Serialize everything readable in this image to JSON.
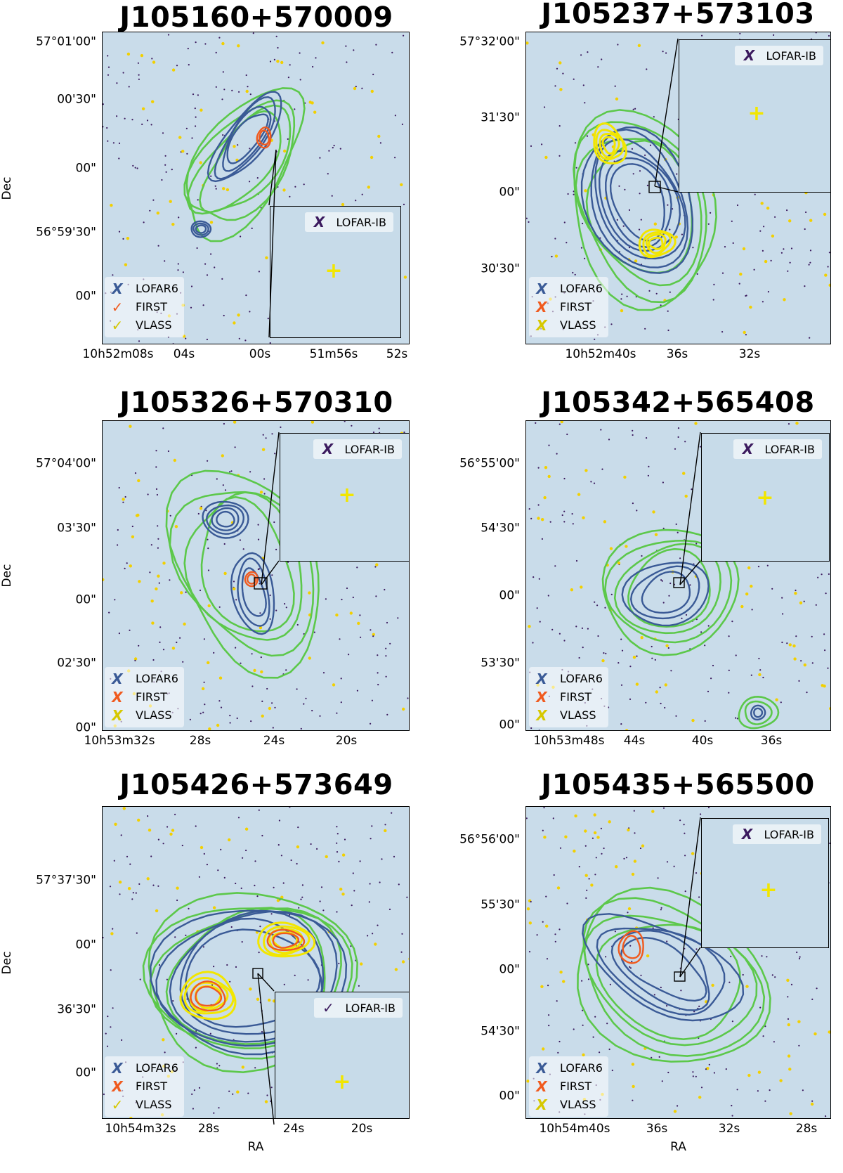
{
  "colors": {
    "lofar6": "#3a5a96",
    "first": "#f05a1e",
    "vlass": "#f2e600",
    "lofar_ib": "#3b1a5e",
    "green": "#5cc84a",
    "background": "#c9dcea"
  },
  "axis_labels": {
    "x": "RA",
    "y": "Dec"
  },
  "panels": [
    {
      "title": "J105160+570009",
      "y_ticks": [
        "57°01'00\"",
        "00'30\"",
        "00\"",
        "56°59'30\"",
        "00\""
      ],
      "x_ticks": [
        "10h52m08s",
        "04s",
        "00s",
        "51m56s",
        "52s"
      ],
      "legend": [
        {
          "mark": "X",
          "mark_icon": "x-mark-icon",
          "label": "LOFAR6",
          "color": "#3a5a96"
        },
        {
          "mark": "✓",
          "mark_icon": "check-mark-icon",
          "label": "FIRST",
          "color": "#f05a1e"
        },
        {
          "mark": "✓",
          "mark_icon": "check-mark-icon",
          "label": "VLASS",
          "color": "#d6c800"
        }
      ],
      "inset_legend": {
        "mark": "X",
        "label": "LOFAR-IB",
        "color": "#3b1a5e"
      }
    },
    {
      "title": "J105237+573103",
      "y_ticks": [
        "57°32'00\"",
        "31'30\"",
        "00\"",
        "30'30\""
      ],
      "x_ticks": [
        "10h52m40s",
        "36s",
        "32s"
      ],
      "legend": [
        {
          "mark": "X",
          "mark_icon": "x-mark-icon",
          "label": "LOFAR6",
          "color": "#3a5a96"
        },
        {
          "mark": "X",
          "mark_icon": "x-mark-icon",
          "label": "FIRST",
          "color": "#f05a1e"
        },
        {
          "mark": "X",
          "mark_icon": "x-mark-icon",
          "label": "VLASS",
          "color": "#d6c800"
        }
      ],
      "inset_legend": {
        "mark": "X",
        "label": "LOFAR-IB",
        "color": "#3b1a5e"
      }
    },
    {
      "title": "J105326+570310",
      "y_ticks": [
        "57°04'00\"",
        "03'30\"",
        "00\"",
        "02'30\"",
        "00\""
      ],
      "x_ticks": [
        "10h53m32s",
        "28s",
        "24s",
        "20s"
      ],
      "legend": [
        {
          "mark": "X",
          "mark_icon": "x-mark-icon",
          "label": "LOFAR6",
          "color": "#3a5a96"
        },
        {
          "mark": "X",
          "mark_icon": "x-mark-icon",
          "label": "FIRST",
          "color": "#f05a1e"
        },
        {
          "mark": "X",
          "mark_icon": "x-mark-icon",
          "label": "VLASS",
          "color": "#d6c800"
        }
      ],
      "inset_legend": {
        "mark": "X",
        "label": "LOFAR-IB",
        "color": "#3b1a5e"
      }
    },
    {
      "title": "J105342+565408",
      "y_ticks": [
        "56°55'00\"",
        "54'30\"",
        "00\"",
        "53'30\"",
        "00\""
      ],
      "x_ticks": [
        "10h53m48s",
        "44s",
        "40s",
        "36s"
      ],
      "legend": [
        {
          "mark": "X",
          "mark_icon": "x-mark-icon",
          "label": "LOFAR6",
          "color": "#3a5a96"
        },
        {
          "mark": "X",
          "mark_icon": "x-mark-icon",
          "label": "FIRST",
          "color": "#f05a1e"
        },
        {
          "mark": "X",
          "mark_icon": "x-mark-icon",
          "label": "VLASS",
          "color": "#d6c800"
        }
      ],
      "inset_legend": {
        "mark": "X",
        "label": "LOFAR-IB",
        "color": "#3b1a5e"
      }
    },
    {
      "title": "J105426+573649",
      "y_ticks": [
        "57°37'30\"",
        "00\"",
        "36'30\"",
        "00\""
      ],
      "x_ticks": [
        "10h54m32s",
        "28s",
        "24s",
        "20s"
      ],
      "legend": [
        {
          "mark": "X",
          "mark_icon": "x-mark-icon",
          "label": "LOFAR6",
          "color": "#3a5a96"
        },
        {
          "mark": "X",
          "mark_icon": "x-mark-icon",
          "label": "FIRST",
          "color": "#f05a1e"
        },
        {
          "mark": "✓",
          "mark_icon": "check-mark-icon",
          "label": "VLASS",
          "color": "#d6c800"
        }
      ],
      "inset_legend": {
        "mark": "✓",
        "label": "LOFAR-IB",
        "color": "#3b1a5e"
      }
    },
    {
      "title": "J105435+565500",
      "y_ticks": [
        "56°56'00\"",
        "55'30\"",
        "00\"",
        "54'30\"",
        "00\""
      ],
      "x_ticks": [
        "10h54m40s",
        "36s",
        "32s",
        "28s"
      ],
      "legend": [
        {
          "mark": "X",
          "mark_icon": "x-mark-icon",
          "label": "LOFAR6",
          "color": "#3a5a96"
        },
        {
          "mark": "X",
          "mark_icon": "x-mark-icon",
          "label": "FIRST",
          "color": "#f05a1e"
        },
        {
          "mark": "X",
          "mark_icon": "x-mark-icon",
          "label": "VLASS",
          "color": "#d6c800"
        }
      ],
      "inset_legend": {
        "mark": "X",
        "label": "LOFAR-IB",
        "color": "#3b1a5e"
      }
    }
  ]
}
